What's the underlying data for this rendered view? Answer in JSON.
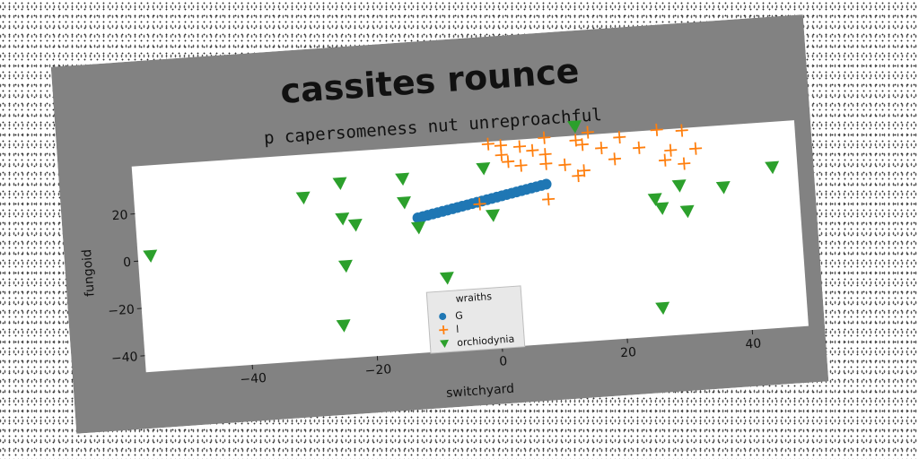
{
  "chart_data": {
    "type": "scatter",
    "title": "cassites rounce",
    "subtitle": "p capersomeness nut unreproachful",
    "xlabel": "switchyard",
    "ylabel": "fungoid",
    "xlim": [
      -57,
      49
    ],
    "ylim": [
      -47,
      40
    ],
    "xticks": [
      -40,
      -20,
      0,
      20,
      40
    ],
    "yticks": [
      -40,
      -20,
      0,
      20
    ],
    "xtick_labels": [
      "−40",
      "−20",
      "0",
      "20",
      "40"
    ],
    "ytick_labels": [
      "−40",
      "−20",
      "0",
      "20"
    ],
    "grid": false,
    "legend": {
      "title": "wraiths",
      "position": "bottom-center"
    },
    "series": [
      {
        "name": "G",
        "marker": "circle",
        "color": "#1f77b4",
        "points": [
          [
            -12,
            10
          ],
          [
            -11.2,
            10.4
          ],
          [
            -10.4,
            10.8
          ],
          [
            -9.6,
            11.2
          ],
          [
            -8.8,
            11.6
          ],
          [
            -8,
            12
          ],
          [
            -7.2,
            12.4
          ],
          [
            -6.4,
            12.8
          ],
          [
            -5.6,
            13.2
          ],
          [
            -4.8,
            13.6
          ],
          [
            -4,
            14
          ],
          [
            -3.2,
            14.4
          ],
          [
            -2.4,
            14.8
          ],
          [
            -1.6,
            15.2
          ],
          [
            -0.8,
            15.6
          ],
          [
            0,
            16
          ],
          [
            0.8,
            16.4
          ],
          [
            1.6,
            16.8
          ],
          [
            2.4,
            17.2
          ],
          [
            3.2,
            17.6
          ],
          [
            4,
            18
          ],
          [
            4.8,
            18.4
          ],
          [
            5.6,
            18.8
          ],
          [
            6.4,
            19.2
          ],
          [
            7.2,
            19.6
          ],
          [
            8,
            20
          ],
          [
            8.8,
            20.4
          ]
        ]
      },
      {
        "name": "l",
        "marker": "plus",
        "color": "#ff7f0e",
        "points": [
          [
            0,
            39
          ],
          [
            2,
            38
          ],
          [
            5,
            37
          ],
          [
            9,
            40
          ],
          [
            14,
            38
          ],
          [
            16,
            41
          ],
          [
            21,
            38
          ],
          [
            27,
            40
          ],
          [
            31,
            39
          ],
          [
            2,
            34
          ],
          [
            7,
            35
          ],
          [
            9,
            33
          ],
          [
            15,
            36
          ],
          [
            18,
            34
          ],
          [
            24,
            33
          ],
          [
            29,
            31
          ],
          [
            33,
            31
          ],
          [
            5,
            29
          ],
          [
            9,
            29
          ],
          [
            12,
            28
          ],
          [
            15,
            25
          ],
          [
            20,
            29
          ],
          [
            28,
            27
          ],
          [
            31,
            25
          ],
          [
            -2,
            14
          ],
          [
            9,
            14
          ],
          [
            14,
            23
          ],
          [
            3,
            31
          ]
        ]
      },
      {
        "name": "orchiodynia",
        "marker": "triangle-down",
        "color": "#2ca02c",
        "points": [
          [
            -55,
            2
          ],
          [
            -30,
            22
          ],
          [
            -24,
            27
          ],
          [
            -14,
            27
          ],
          [
            -1,
            29
          ],
          [
            14,
            44
          ],
          [
            -14,
            17
          ],
          [
            -24,
            12
          ],
          [
            -22,
            9
          ],
          [
            -12,
            6
          ],
          [
            0,
            9
          ],
          [
            -24,
            -8
          ],
          [
            -25,
            -33
          ],
          [
            -8,
            -16
          ],
          [
            26,
            -35
          ],
          [
            26,
            11
          ],
          [
            27,
            7
          ],
          [
            30,
            16
          ],
          [
            31,
            5
          ],
          [
            37,
            14
          ],
          [
            45,
            21
          ]
        ]
      }
    ]
  }
}
